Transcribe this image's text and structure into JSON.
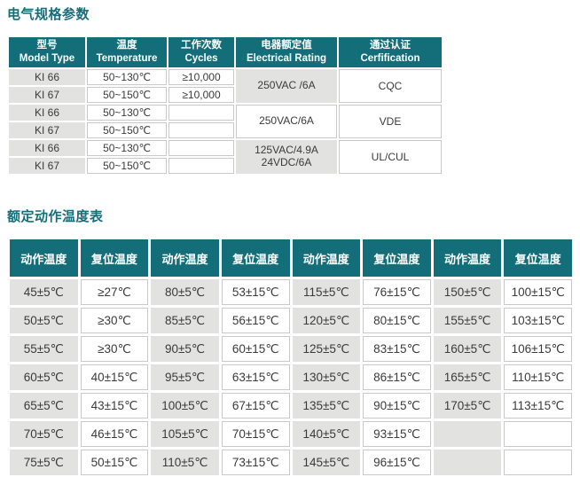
{
  "page": {
    "colors": {
      "accent_teal": "#136e79",
      "header_text": "#ffffff",
      "shaded_cell": "#e2e2e0",
      "cell_border": "#c9c9c9",
      "body_text": "#3a3a3a",
      "background": "#ffffff"
    },
    "spec_section": {
      "title": "电气规格参数",
      "headers": [
        {
          "zh": "型号",
          "en": "Model Type"
        },
        {
          "zh": "温度",
          "en": "Temperature"
        },
        {
          "zh": "工作次数",
          "en": "Cycles"
        },
        {
          "zh": "电器额定值",
          "en": "Electrical Rating"
        },
        {
          "zh": "通过认证",
          "en": "Cerfification"
        }
      ],
      "groups": [
        {
          "rows": [
            {
              "model": "KI 66",
              "temp": "50~130℃",
              "cycles": "≥10,000"
            },
            {
              "model": "KI 67",
              "temp": "50~150℃",
              "cycles": "≥10,000"
            }
          ],
          "rating": "250VAC /6A",
          "rating_shaded": true,
          "cert": "CQC"
        },
        {
          "rows": [
            {
              "model": "KI 66",
              "temp": "50~130℃",
              "cycles": ""
            },
            {
              "model": "KI 67",
              "temp": "50~150℃",
              "cycles": ""
            }
          ],
          "rating": "250VAC/6A",
          "rating_shaded": false,
          "cert": "VDE"
        },
        {
          "rows": [
            {
              "model": "KI 66",
              "temp": "50~130℃",
              "cycles": ""
            },
            {
              "model": "KI 67",
              "temp": "50~150℃",
              "cycles": ""
            }
          ],
          "rating": "125VAC/4.9A\n24VDC/6A",
          "rating_shaded": true,
          "cert": "UL/CUL"
        }
      ]
    },
    "temp_section": {
      "title": "额定动作温度表",
      "headers": [
        "动作温度",
        "复位温度",
        "动作温度",
        "复位温度",
        "动作温度",
        "复位温度",
        "动作温度",
        "复位温度"
      ],
      "rows": [
        [
          "45±5℃",
          "≥27℃",
          "80±5℃",
          "53±15℃",
          "115±5℃",
          "76±15℃",
          "150±5℃",
          "100±15℃"
        ],
        [
          "50±5℃",
          "≥30℃",
          "85±5℃",
          "56±15℃",
          "120±5℃",
          "80±15℃",
          "155±5℃",
          "103±15℃"
        ],
        [
          "55±5℃",
          "≥30℃",
          "90±5℃",
          "60±15℃",
          "125±5℃",
          "83±15℃",
          "160±5℃",
          "106±15℃"
        ],
        [
          "60±5℃",
          "40±15℃",
          "95±5℃",
          "63±15℃",
          "130±5℃",
          "86±15℃",
          "165±5℃",
          "110±15℃"
        ],
        [
          "65±5℃",
          "43±15℃",
          "100±5℃",
          "67±15℃",
          "135±5℃",
          "90±15℃",
          "170±5℃",
          "113±15℃"
        ],
        [
          "70±5℃",
          "46±15℃",
          "105±5℃",
          "70±15℃",
          "140±5℃",
          "93±15℃",
          "",
          ""
        ],
        [
          "75±5℃",
          "50±15℃",
          "110±5℃",
          "73±15℃",
          "145±5℃",
          "96±15℃",
          "",
          ""
        ]
      ]
    }
  }
}
